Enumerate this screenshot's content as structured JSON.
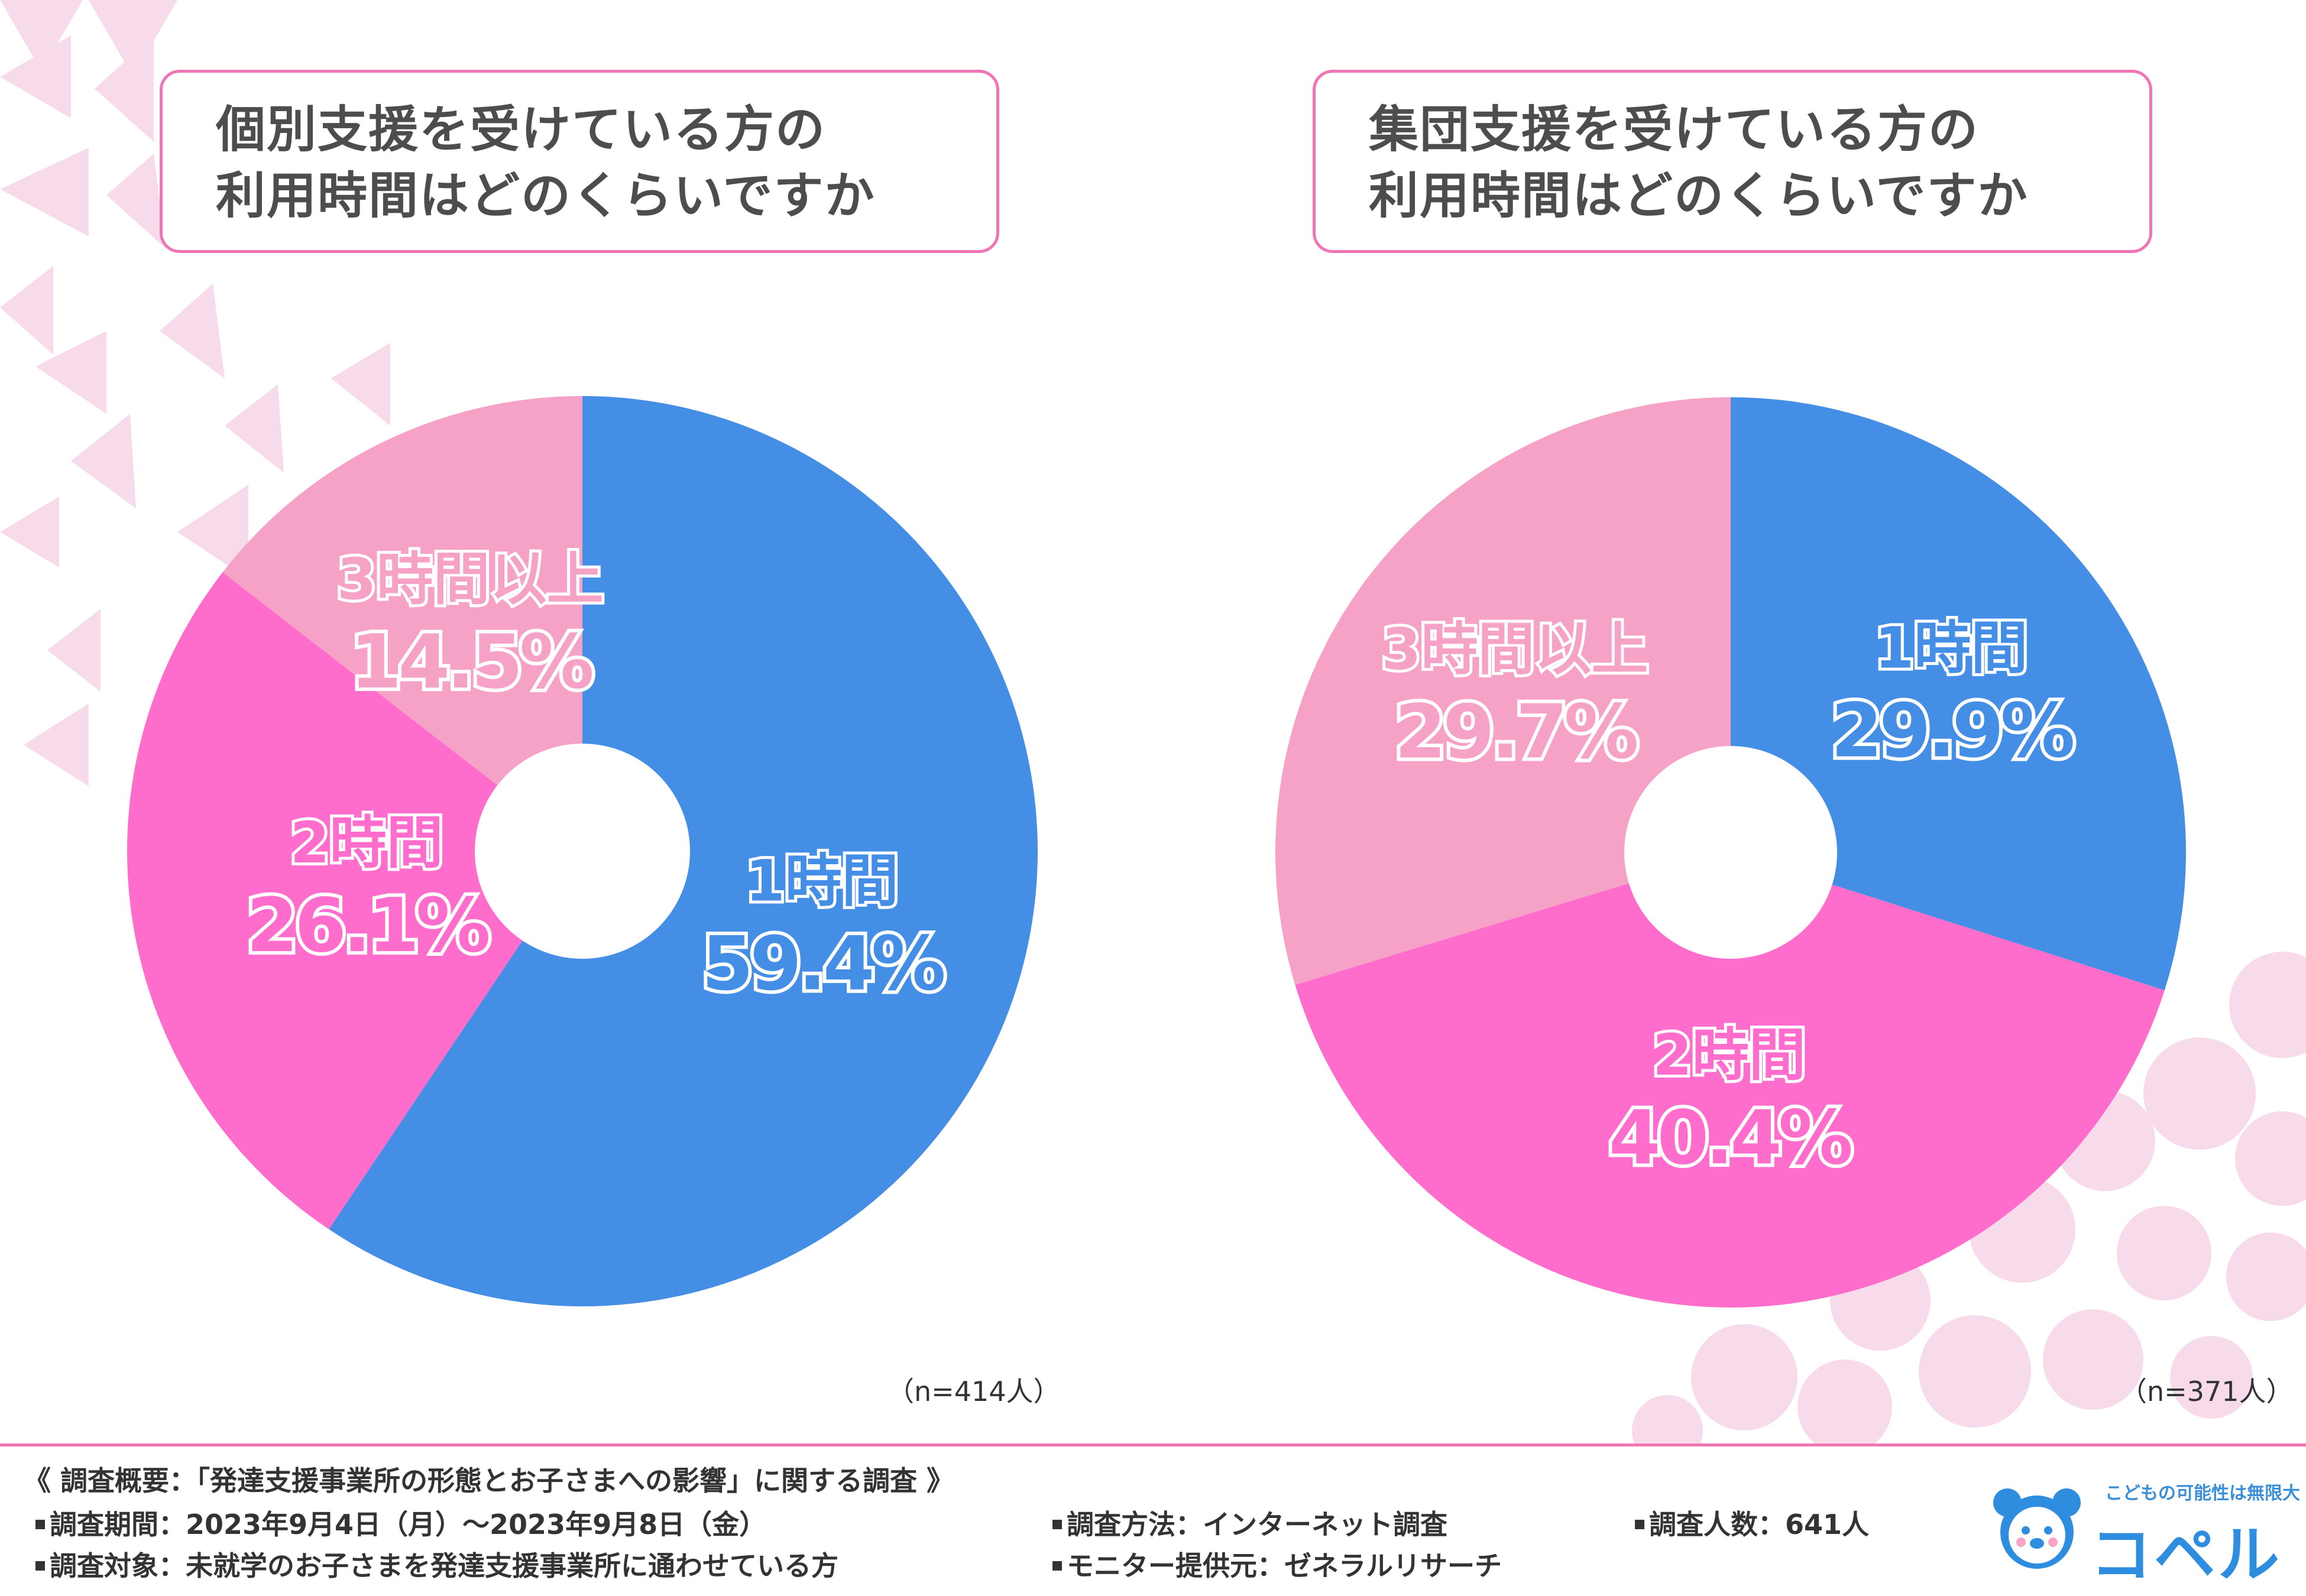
{
  "colors": {
    "blue": "#448ee6",
    "pink": "#fe6dcb",
    "light_pink": "#f6a1c6",
    "title_border": "#f075b5",
    "decor": "#f7d5e8"
  },
  "titles": {
    "left": [
      "個別支援を受けている方の",
      "利用時間はどのくらいですか"
    ],
    "right": [
      "集団支援を受けている方の",
      "利用時間はどのくらいですか"
    ]
  },
  "chart_data": [
    {
      "type": "pie",
      "donut": true,
      "title": "個別支援を受けている方の利用時間はどのくらいですか",
      "categories": [
        "1時間",
        "2時間",
        "3時間以上"
      ],
      "values": [
        59.4,
        26.1,
        14.5
      ],
      "value_labels": [
        "59.4%",
        "26.1%",
        "14.5%"
      ],
      "sample": "（n=414人）"
    },
    {
      "type": "pie",
      "donut": true,
      "title": "集団支援を受けている方の利用時間はどのくらいですか",
      "categories": [
        "1時間",
        "2時間",
        "3時間以上"
      ],
      "values": [
        29.9,
        40.4,
        29.7
      ],
      "value_labels": [
        "29.9%",
        "40.4%",
        "29.7%"
      ],
      "sample": "（n=371人）"
    }
  ],
  "footer": {
    "summary": "《 調査概要：「発達支援事業所の形態とお子さまへの影響」に関する調査 》",
    "period_label": "調査期間：",
    "period_value": "2023年9月4日（月）～2023年9月8日（金）",
    "method_label": "調査方法：",
    "method_value": "インターネット調査",
    "count_label": "調査人数：",
    "count_value": "641人",
    "target_label": "調査対象：",
    "target_value": "未就学のお子さまを発達支援事業所に通わせている方",
    "provider_label": "モニター提供元：",
    "provider_value": "ゼネラルリサーチ"
  },
  "logo": {
    "tagline": "こどもの可能性は無限大",
    "name": "コペル"
  }
}
